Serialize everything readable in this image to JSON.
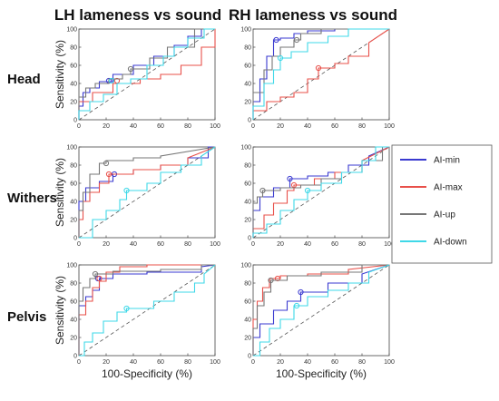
{
  "figure": {
    "column_titles": [
      "LH lameness vs sound",
      "RH lameness vs sound"
    ],
    "row_labels": [
      "Head",
      "Withers",
      "Pelvis"
    ]
  },
  "legend": [
    {
      "label": "AI-min",
      "color": "#3a3ad0"
    },
    {
      "label": "AI-max",
      "color": "#e8504a"
    },
    {
      "label": "AI-up",
      "color": "#777777"
    },
    {
      "label": "AI-down",
      "color": "#3fd8e8"
    }
  ],
  "chart_data": [
    {
      "type": "line",
      "panel": "LH-Head",
      "xlabel": "",
      "ylabel": "Sensitivity (%)",
      "xlim": [
        0,
        100
      ],
      "ylim": [
        0,
        100
      ],
      "ticks": [
        0,
        20,
        40,
        60,
        80,
        100
      ],
      "series": [
        {
          "name": "AI-min",
          "x": [
            0,
            0,
            3,
            3,
            8,
            8,
            15,
            15,
            25,
            25,
            40,
            40,
            55,
            55,
            70,
            70,
            80,
            80,
            90,
            90,
            100
          ],
          "y": [
            0,
            15,
            15,
            30,
            30,
            35,
            35,
            42,
            42,
            50,
            50,
            60,
            60,
            70,
            70,
            82,
            82,
            92,
            92,
            100,
            100
          ],
          "marker": [
            22,
            43
          ]
        },
        {
          "name": "AI-max",
          "x": [
            0,
            0,
            10,
            10,
            25,
            25,
            45,
            45,
            60,
            60,
            75,
            75,
            90,
            90,
            100,
            100
          ],
          "y": [
            0,
            20,
            20,
            30,
            30,
            40,
            40,
            45,
            45,
            50,
            50,
            60,
            60,
            80,
            80,
            100
          ],
          "marker": [
            28,
            43
          ]
        },
        {
          "name": "AI-up",
          "x": [
            0,
            0,
            5,
            5,
            12,
            12,
            22,
            22,
            32,
            32,
            38,
            38,
            52,
            52,
            65,
            65,
            85,
            85,
            100
          ],
          "y": [
            0,
            25,
            25,
            35,
            35,
            40,
            40,
            45,
            45,
            50,
            50,
            56,
            56,
            68,
            68,
            80,
            80,
            100,
            100
          ],
          "marker": [
            38,
            56
          ]
        },
        {
          "name": "AI-down",
          "x": [
            0,
            0,
            8,
            8,
            18,
            18,
            28,
            28,
            38,
            38,
            50,
            50,
            62,
            62,
            70,
            70,
            80,
            80,
            92,
            92,
            100
          ],
          "y": [
            0,
            10,
            10,
            20,
            20,
            28,
            28,
            40,
            40,
            45,
            45,
            60,
            60,
            70,
            70,
            80,
            80,
            90,
            90,
            100,
            100
          ],
          "marker": [
            24,
            43
          ]
        }
      ]
    },
    {
      "type": "line",
      "panel": "RH-Head",
      "xlabel": "",
      "ylabel": "",
      "xlim": [
        0,
        100
      ],
      "ylim": [
        0,
        100
      ],
      "ticks": [
        0,
        20,
        40,
        60,
        80,
        100
      ],
      "series": [
        {
          "name": "AI-min",
          "x": [
            0,
            0,
            5,
            5,
            10,
            10,
            15,
            15,
            20,
            20,
            30,
            30,
            40,
            40,
            60,
            60,
            100
          ],
          "y": [
            0,
            20,
            20,
            45,
            45,
            70,
            70,
            88,
            88,
            90,
            90,
            95,
            95,
            98,
            98,
            100,
            100
          ],
          "marker": [
            17,
            88
          ]
        },
        {
          "name": "AI-max",
          "x": [
            0,
            0,
            10,
            10,
            20,
            20,
            30,
            30,
            40,
            40,
            48,
            48,
            60,
            60,
            70,
            70,
            85,
            85,
            100
          ],
          "y": [
            0,
            10,
            10,
            20,
            20,
            25,
            25,
            30,
            30,
            45,
            45,
            57,
            57,
            62,
            62,
            70,
            70,
            85,
            100
          ],
          "marker": [
            48,
            57
          ]
        },
        {
          "name": "AI-up",
          "x": [
            0,
            0,
            8,
            8,
            14,
            14,
            20,
            20,
            30,
            30,
            35,
            35,
            50,
            50,
            100
          ],
          "y": [
            0,
            30,
            30,
            55,
            55,
            70,
            70,
            80,
            80,
            88,
            88,
            95,
            95,
            100,
            100
          ],
          "marker": [
            32,
            88
          ]
        },
        {
          "name": "AI-down",
          "x": [
            0,
            0,
            8,
            8,
            15,
            15,
            20,
            20,
            28,
            28,
            40,
            40,
            55,
            55,
            70,
            70,
            100
          ],
          "y": [
            0,
            15,
            15,
            40,
            40,
            55,
            55,
            68,
            68,
            75,
            75,
            85,
            85,
            92,
            92,
            100,
            100
          ],
          "marker": [
            20,
            68
          ]
        }
      ]
    },
    {
      "type": "line",
      "panel": "LH-Withers",
      "xlabel": "",
      "ylabel": "Sensitivity (%)",
      "xlim": [
        0,
        100
      ],
      "ylim": [
        0,
        100
      ],
      "ticks": [
        0,
        20,
        40,
        60,
        80,
        100
      ],
      "series": [
        {
          "name": "AI-min",
          "x": [
            0,
            0,
            5,
            5,
            15,
            15,
            25,
            25,
            40,
            40,
            60,
            60,
            80,
            80,
            95,
            95,
            100
          ],
          "y": [
            0,
            40,
            40,
            55,
            55,
            62,
            62,
            70,
            70,
            75,
            75,
            80,
            80,
            88,
            88,
            100,
            100
          ],
          "marker": [
            26,
            70
          ]
        },
        {
          "name": "AI-max",
          "x": [
            0,
            0,
            3,
            3,
            8,
            8,
            15,
            15,
            22,
            22,
            40,
            40,
            60,
            60,
            80,
            80,
            100
          ],
          "y": [
            0,
            20,
            20,
            40,
            40,
            50,
            50,
            60,
            60,
            70,
            70,
            75,
            75,
            80,
            80,
            88,
            100
          ],
          "marker": [
            22,
            70
          ]
        },
        {
          "name": "AI-up",
          "x": [
            0,
            0,
            3,
            3,
            8,
            8,
            15,
            15,
            20,
            20,
            40,
            40,
            60,
            60,
            100
          ],
          "y": [
            0,
            30,
            30,
            50,
            50,
            70,
            70,
            82,
            82,
            85,
            85,
            88,
            88,
            90,
            100
          ],
          "marker": [
            20,
            82
          ]
        },
        {
          "name": "AI-down",
          "x": [
            0,
            10,
            10,
            20,
            20,
            30,
            30,
            35,
            35,
            50,
            50,
            60,
            60,
            75,
            75,
            90,
            90,
            100
          ],
          "y": [
            0,
            0,
            20,
            20,
            30,
            30,
            42,
            42,
            52,
            52,
            60,
            60,
            72,
            72,
            80,
            80,
            90,
            100
          ],
          "marker": [
            35,
            52
          ]
        }
      ]
    },
    {
      "type": "line",
      "panel": "RH-Withers",
      "xlabel": "",
      "ylabel": "",
      "xlim": [
        0,
        100
      ],
      "ylim": [
        0,
        100
      ],
      "ticks": [
        0,
        20,
        40,
        60,
        80,
        100
      ],
      "series": [
        {
          "name": "AI-min",
          "x": [
            0,
            0,
            5,
            5,
            15,
            15,
            27,
            27,
            40,
            40,
            55,
            55,
            70,
            70,
            85,
            85,
            100
          ],
          "y": [
            0,
            30,
            30,
            45,
            45,
            55,
            55,
            65,
            65,
            68,
            68,
            72,
            72,
            80,
            80,
            90,
            100
          ],
          "marker": [
            27,
            65
          ]
        },
        {
          "name": "AI-max",
          "x": [
            0,
            0,
            8,
            8,
            15,
            15,
            25,
            25,
            30,
            30,
            45,
            45,
            60,
            60,
            80,
            80,
            100
          ],
          "y": [
            0,
            10,
            10,
            25,
            25,
            38,
            38,
            52,
            52,
            58,
            58,
            65,
            65,
            72,
            72,
            85,
            100
          ],
          "marker": [
            30,
            58
          ]
        },
        {
          "name": "AI-up",
          "x": [
            0,
            0,
            3,
            3,
            7,
            7,
            20,
            20,
            35,
            35,
            50,
            50,
            65,
            65,
            80,
            80,
            95,
            95,
            100
          ],
          "y": [
            0,
            38,
            38,
            45,
            45,
            52,
            52,
            55,
            55,
            58,
            58,
            65,
            65,
            72,
            72,
            85,
            85,
            100,
            100
          ],
          "marker": [
            7,
            52
          ]
        },
        {
          "name": "AI-down",
          "x": [
            0,
            0,
            10,
            10,
            20,
            20,
            30,
            30,
            40,
            40,
            50,
            50,
            65,
            65,
            80,
            80,
            90,
            90,
            100
          ],
          "y": [
            0,
            5,
            5,
            15,
            15,
            30,
            30,
            42,
            42,
            52,
            52,
            60,
            60,
            72,
            72,
            85,
            85,
            100,
            100
          ],
          "marker": [
            40,
            52
          ]
        }
      ]
    },
    {
      "type": "line",
      "panel": "LH-Pelvis",
      "xlabel": "100-Specificity (%)",
      "ylabel": "Sensitivity (%)",
      "xlim": [
        0,
        100
      ],
      "ylim": [
        0,
        100
      ],
      "ticks": [
        0,
        20,
        40,
        60,
        80,
        100
      ],
      "series": [
        {
          "name": "AI-min",
          "x": [
            0,
            0,
            5,
            5,
            10,
            10,
            15,
            15,
            25,
            25,
            50,
            50,
            90,
            90,
            100
          ],
          "y": [
            0,
            55,
            55,
            65,
            65,
            72,
            72,
            85,
            85,
            90,
            90,
            92,
            92,
            98,
            100
          ],
          "marker": [
            14,
            85
          ]
        },
        {
          "name": "AI-max",
          "x": [
            0,
            0,
            5,
            5,
            10,
            10,
            15,
            15,
            20,
            20,
            30,
            30,
            50,
            50,
            100
          ],
          "y": [
            0,
            45,
            45,
            60,
            60,
            75,
            75,
            82,
            82,
            92,
            92,
            98,
            98,
            100,
            100
          ],
          "marker": [
            15,
            85
          ]
        },
        {
          "name": "AI-up",
          "x": [
            0,
            0,
            3,
            3,
            8,
            8,
            12,
            12,
            25,
            25,
            60,
            60,
            90,
            90,
            100
          ],
          "y": [
            0,
            60,
            60,
            75,
            75,
            85,
            85,
            90,
            90,
            93,
            93,
            95,
            95,
            100,
            100
          ],
          "marker": [
            12,
            90
          ]
        },
        {
          "name": "AI-down",
          "x": [
            0,
            4,
            4,
            10,
            10,
            18,
            18,
            28,
            28,
            35,
            35,
            55,
            55,
            70,
            70,
            85,
            85,
            92,
            92,
            100
          ],
          "y": [
            0,
            0,
            15,
            15,
            25,
            25,
            38,
            38,
            48,
            48,
            52,
            52,
            60,
            60,
            70,
            70,
            80,
            80,
            90,
            100
          ],
          "marker": [
            35,
            52
          ]
        }
      ]
    },
    {
      "type": "line",
      "panel": "RH-Pelvis",
      "xlabel": "100-Specificity (%)",
      "ylabel": "",
      "xlim": [
        0,
        100
      ],
      "ylim": [
        0,
        100
      ],
      "ticks": [
        0,
        20,
        40,
        60,
        80,
        100
      ],
      "series": [
        {
          "name": "AI-min",
          "x": [
            0,
            0,
            5,
            5,
            15,
            15,
            25,
            25,
            35,
            35,
            55,
            55,
            80,
            80,
            100
          ],
          "y": [
            0,
            20,
            20,
            35,
            35,
            50,
            50,
            60,
            60,
            70,
            70,
            80,
            80,
            90,
            100
          ],
          "marker": [
            35,
            70
          ]
        },
        {
          "name": "AI-max",
          "x": [
            0,
            0,
            3,
            3,
            7,
            7,
            12,
            12,
            20,
            20,
            40,
            40,
            70,
            70,
            100
          ],
          "y": [
            0,
            40,
            40,
            60,
            60,
            75,
            75,
            85,
            85,
            88,
            88,
            90,
            90,
            95,
            100
          ],
          "marker": [
            18,
            85
          ]
        },
        {
          "name": "AI-up",
          "x": [
            0,
            0,
            3,
            3,
            8,
            8,
            13,
            13,
            25,
            25,
            50,
            50,
            80,
            80,
            100
          ],
          "y": [
            0,
            30,
            30,
            55,
            55,
            70,
            70,
            83,
            83,
            88,
            88,
            92,
            92,
            100,
            100
          ],
          "marker": [
            13,
            83
          ]
        },
        {
          "name": "AI-down",
          "x": [
            0,
            5,
            5,
            12,
            12,
            20,
            20,
            30,
            30,
            40,
            40,
            55,
            55,
            70,
            70,
            85,
            85,
            100
          ],
          "y": [
            0,
            0,
            15,
            15,
            30,
            30,
            40,
            40,
            55,
            55,
            65,
            65,
            72,
            72,
            80,
            80,
            92,
            100
          ],
          "marker": [
            32,
            55
          ]
        }
      ]
    }
  ]
}
